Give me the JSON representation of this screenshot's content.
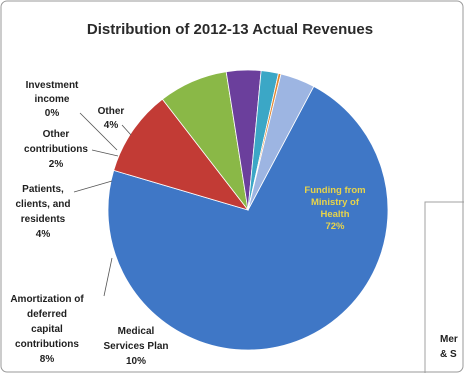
{
  "chart_data": {
    "type": "pie",
    "title": "Distribution of 2012-13 Actual Revenues",
    "slices": [
      {
        "label": [
          "Funding from",
          "Ministry of",
          "Health"
        ],
        "pct_text": "72%",
        "value": 72,
        "color": "#3f77c6"
      },
      {
        "label": [
          "Medical",
          "Services Plan"
        ],
        "pct_text": "10%",
        "value": 10,
        "color": "#c23b35"
      },
      {
        "label": [
          "Amortization of",
          "deferred",
          "capital",
          "contributions"
        ],
        "pct_text": "8%",
        "value": 8,
        "color": "#8ab847"
      },
      {
        "label": [
          "Patients,",
          "clients, and",
          "residents"
        ],
        "pct_text": "4%",
        "value": 4,
        "color": "#6b3f9c"
      },
      {
        "label": [
          "Other",
          "contributions"
        ],
        "pct_text": "2%",
        "value": 2,
        "color": "#3ba7c6"
      },
      {
        "label": [
          "Investment",
          "income"
        ],
        "pct_text": "0%",
        "value": 0.3,
        "color": "#e3872f"
      },
      {
        "label": [
          "Other"
        ],
        "pct_text": "4%",
        "value": 4,
        "color": "#9db5e2"
      }
    ]
  },
  "background_fragment": {
    "lines": [
      "Mer",
      "& S"
    ]
  }
}
